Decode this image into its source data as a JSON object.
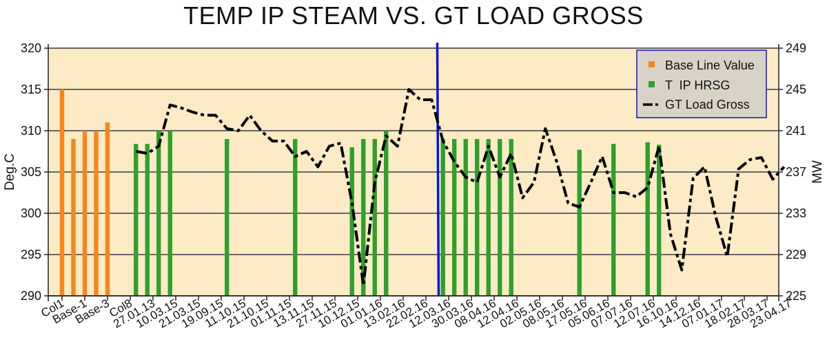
{
  "chart_data": {
    "type": "bar+line",
    "title": "TEMP IP STEAM VS. GT LOAD GROSS",
    "ylabel_left": "Deg.C",
    "ylabel_right": "MW",
    "ylim_left": [
      290,
      320
    ],
    "ylim_right": [
      225,
      249
    ],
    "yticks_left": [
      290,
      295,
      300,
      305,
      310,
      315,
      320
    ],
    "yticks_right": [
      225,
      229,
      233,
      237,
      241,
      245,
      249
    ],
    "grid": true,
    "legend_position": "top-right",
    "x_tick_labels": [
      "Col1",
      "Base-1",
      "Base-3",
      "Col8",
      "27.01.13",
      "10.03.15",
      "21.03.15",
      "19.09.15",
      "11.10.15",
      "21.10.15",
      "01.11.15",
      "13.11.15",
      "27.11.15",
      "10.12.15",
      "01.01.16",
      "13.02.16",
      "22.02.16",
      "12.03.16",
      "30.03.16",
      "08.04.16",
      "12.04.16",
      "02.05.16",
      "08.05.16",
      "17.05.16",
      "05.06.16",
      "07.07.16",
      "12.07.16",
      "16.10.16",
      "14.12.16",
      "07.01.17",
      "18.02.17",
      "28.03.17",
      "23.04.17"
    ],
    "series": [
      {
        "name": "Base Line Value",
        "kind": "bar",
        "axis": "left",
        "color": "#f7861c",
        "points": [
          [
            0,
            315
          ],
          [
            1,
            309
          ],
          [
            2,
            310
          ],
          [
            3,
            310
          ],
          [
            4,
            311
          ]
        ]
      },
      {
        "name": "T  IP HRSG",
        "kind": "bar",
        "axis": "left",
        "color": "#2ea02c",
        "points": [
          [
            6.5,
            308.4
          ],
          [
            7.5,
            308.4
          ],
          [
            8.5,
            310
          ],
          [
            9.5,
            310
          ],
          [
            14.5,
            309
          ],
          [
            20.5,
            309
          ],
          [
            25.5,
            308
          ],
          [
            26.5,
            309
          ],
          [
            27.5,
            309
          ],
          [
            28.5,
            310
          ],
          [
            33.5,
            309
          ],
          [
            34.5,
            309
          ],
          [
            35.5,
            309
          ],
          [
            36.5,
            309
          ],
          [
            37.5,
            309
          ],
          [
            38.5,
            309
          ],
          [
            39.5,
            309
          ],
          [
            45.5,
            307.7
          ],
          [
            48.5,
            308.4
          ],
          [
            51.5,
            308.6
          ],
          [
            52.5,
            308.3
          ]
        ]
      },
      {
        "name": "GT Load Gross",
        "kind": "line",
        "axis": "right",
        "color": "#000000",
        "style": "dash-dot",
        "points": [
          [
            6.5,
            239
          ],
          [
            7.5,
            238.8
          ],
          [
            8.5,
            239.5
          ],
          [
            9.5,
            243.5
          ],
          [
            10.5,
            243.2
          ],
          [
            11.5,
            242.8
          ],
          [
            12.5,
            242.5
          ],
          [
            13.5,
            242.5
          ],
          [
            14.5,
            241.2
          ],
          [
            15.5,
            241
          ],
          [
            16.5,
            242.5
          ],
          [
            17.5,
            241
          ],
          [
            18.5,
            240
          ],
          [
            19.5,
            240
          ],
          [
            20.5,
            238.5
          ],
          [
            21.5,
            239
          ],
          [
            22.5,
            237.5
          ],
          [
            23.5,
            239.5
          ],
          [
            24.5,
            239.8
          ],
          [
            25.5,
            234
          ],
          [
            26.5,
            226
          ],
          [
            27.5,
            236
          ],
          [
            28.5,
            240.5
          ],
          [
            29.5,
            239.5
          ],
          [
            30.5,
            245
          ],
          [
            31.5,
            244
          ],
          [
            32.5,
            244
          ],
          [
            33.5,
            240
          ],
          [
            34.5,
            238
          ],
          [
            35.5,
            236.5
          ],
          [
            36.5,
            236
          ],
          [
            37.5,
            239.5
          ],
          [
            38.5,
            236.5
          ],
          [
            39.5,
            238.8
          ],
          [
            40.5,
            234.5
          ],
          [
            41.5,
            236
          ],
          [
            42.5,
            241.2
          ],
          [
            43.5,
            238
          ],
          [
            44.5,
            234
          ],
          [
            45.5,
            233.6
          ],
          [
            46.5,
            236
          ],
          [
            47.5,
            238.5
          ],
          [
            48.5,
            235
          ],
          [
            49.5,
            235
          ],
          [
            50.5,
            234.6
          ],
          [
            51.5,
            235.5
          ],
          [
            52.5,
            239.5
          ],
          [
            53.5,
            231
          ],
          [
            54.5,
            227.5
          ],
          [
            55.5,
            236.4
          ],
          [
            56.5,
            237.5
          ],
          [
            57.5,
            232.6
          ],
          [
            58.5,
            228.8
          ],
          [
            59.5,
            237.3
          ],
          [
            60.5,
            238.2
          ],
          [
            61.5,
            238.4
          ],
          [
            62.5,
            236.3
          ],
          [
            63.5,
            237.5
          ]
        ]
      }
    ],
    "reference_line": {
      "x": 33,
      "color": "#0a14d9"
    }
  }
}
